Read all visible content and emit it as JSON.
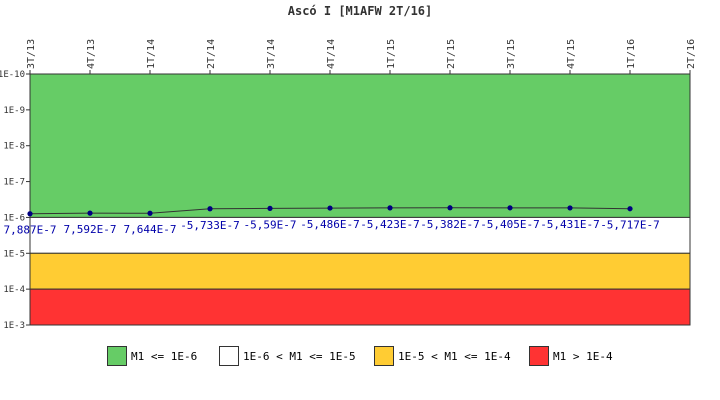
{
  "chart_data": {
    "type": "line",
    "title": "Ascó I [M1AFW 2T/16]",
    "categories": [
      "3T/13",
      "4T/13",
      "1T/14",
      "2T/14",
      "3T/14",
      "4T/14",
      "1T/15",
      "2T/15",
      "3T/15",
      "4T/15",
      "1T/16",
      "2T/16"
    ],
    "series": [
      {
        "values": [
          7.887e-07,
          7.592e-07,
          7.644e-07,
          -5.733e-07,
          -5.59e-07,
          -5.486e-07,
          -5.423e-07,
          -5.382e-07,
          -5.405e-07,
          -5.431e-07,
          -5.717e-07,
          null
        ],
        "labels": [
          "7,887E-7",
          "7,592E-7",
          "7,644E-7",
          "-5,733E-7",
          "-5,59E-7",
          "-5,486E-7",
          "-5,423E-7",
          "-5,382E-7",
          "-5,405E-7",
          "-5,431E-7",
          "-5,717E-7",
          ""
        ],
        "color": "#000080"
      }
    ],
    "y_axis": {
      "scale": "log",
      "inverted": true,
      "min": 1e-10,
      "max": 0.001,
      "ticks": [
        "1E-10",
        "1E-9",
        "1E-8",
        "1E-7",
        "1E-6",
        "1E-5",
        "1E-4",
        "1E-3"
      ]
    },
    "bands": [
      {
        "from": 1e-10,
        "to": 1e-06,
        "color": "#66cc66"
      },
      {
        "from": 1e-06,
        "to": 1e-05,
        "color": "#ffffff"
      },
      {
        "from": 1e-05,
        "to": 0.0001,
        "color": "#ffcc33"
      },
      {
        "from": 0.0001,
        "to": 0.001,
        "color": "#ff3333"
      }
    ],
    "legend": [
      {
        "label": "M1 <= 1E-6",
        "color": "#66cc66"
      },
      {
        "label": "1E-6 < M1 <= 1E-5",
        "color": "#ffffff"
      },
      {
        "label": "1E-5 < M1 <= 1E-4",
        "color": "#ffcc33"
      },
      {
        "label": "M1 > 1E-4",
        "color": "#ff3333"
      }
    ],
    "legend_position": "bottom",
    "grid": false
  }
}
